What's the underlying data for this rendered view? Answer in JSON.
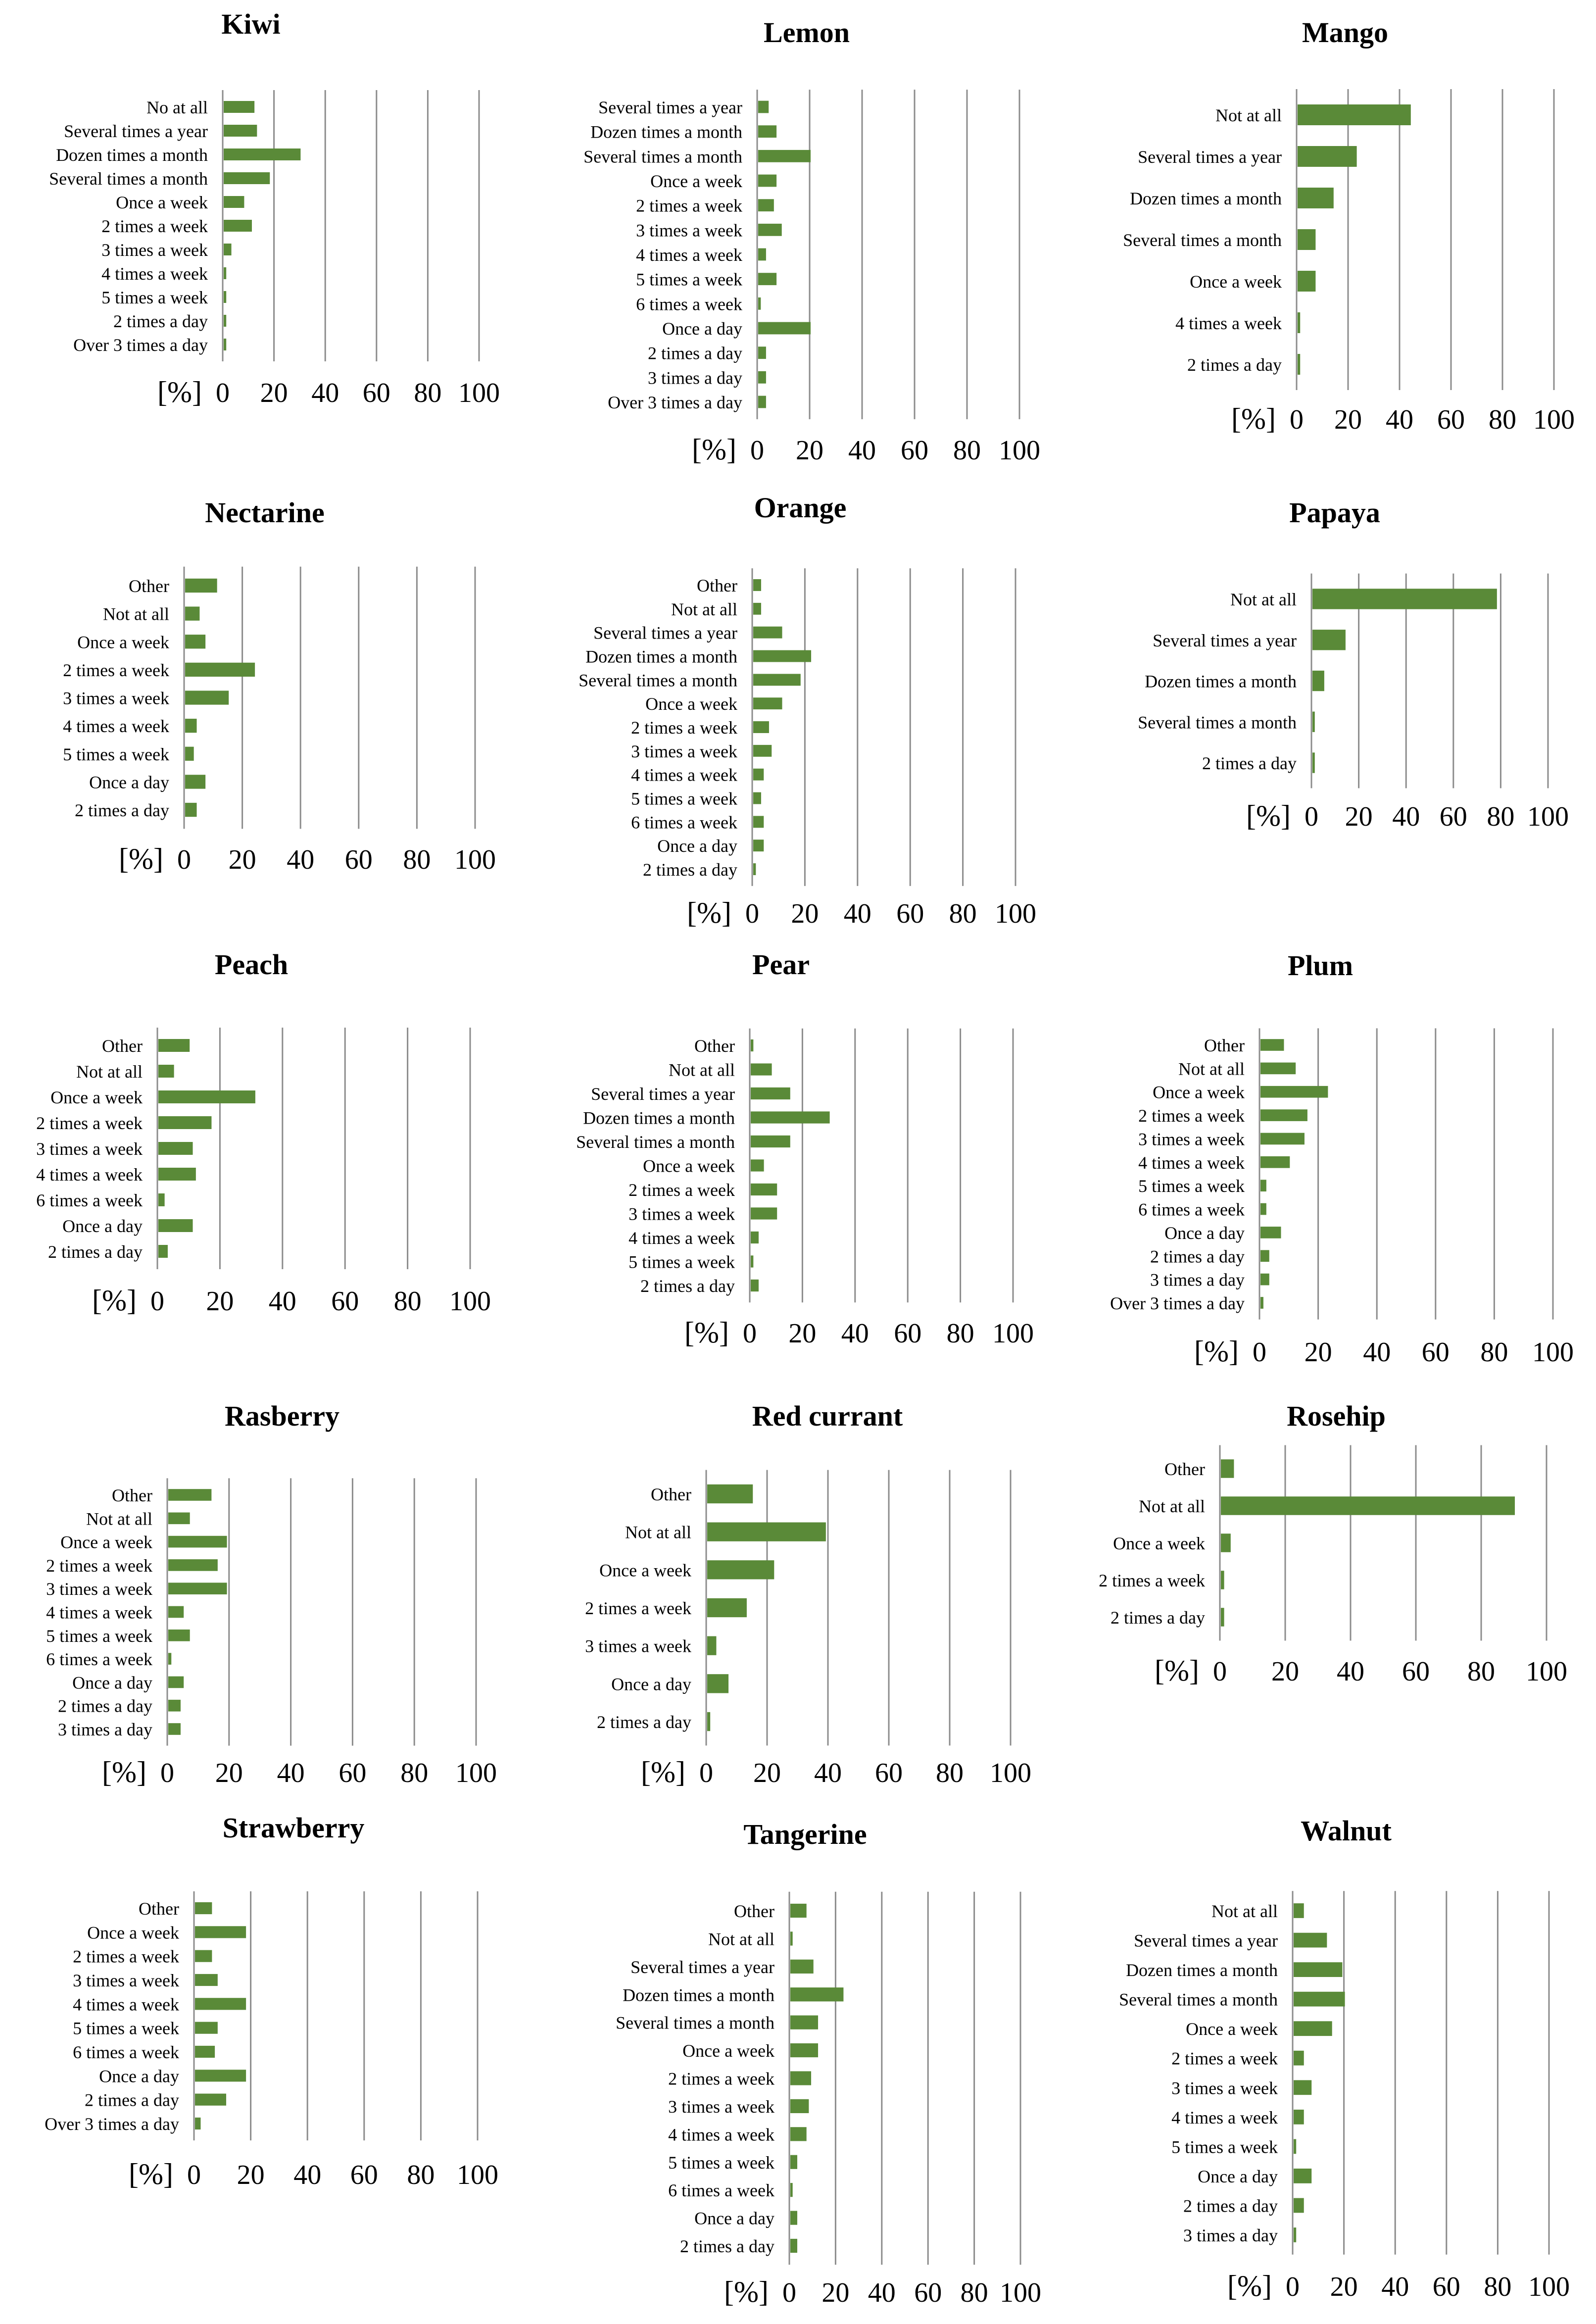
{
  "colors": {
    "bar": "#5a8a38",
    "grid": "#8c8c8c"
  },
  "chart_data": [
    {
      "type": "bar",
      "orientation": "horizontal",
      "title": "Kiwi",
      "xlabel": "[%]",
      "xlim": [
        0,
        100
      ],
      "ticks": [
        0,
        20,
        40,
        60,
        80,
        100
      ],
      "categories": [
        "No at all",
        "Several times a year",
        "Dozen times a month",
        "Several times a month",
        "Once a week",
        "2 times a week",
        "3 times a week",
        "4 times a week",
        "5 times a week",
        "2 times a day",
        "Over 3 times a day"
      ],
      "values": [
        12,
        13,
        30,
        18,
        8,
        11,
        3,
        1,
        1,
        1,
        1
      ]
    },
    {
      "type": "bar",
      "orientation": "horizontal",
      "title": "Lemon",
      "xlabel": "[%]",
      "xlim": [
        0,
        100
      ],
      "ticks": [
        0,
        20,
        40,
        60,
        80,
        100
      ],
      "categories": [
        "Several times a year",
        "Dozen times a month",
        "Several times a month",
        "Once a week",
        "2 times a week",
        "3 times a week",
        "4 times a week",
        "5 times a week",
        "6 times a week",
        "Once a day",
        "2 times a day",
        "3 times a day",
        "Over 3 times a day"
      ],
      "values": [
        4,
        7,
        20,
        7,
        6,
        9,
        3,
        7,
        1,
        20,
        3,
        3,
        3
      ]
    },
    {
      "type": "bar",
      "orientation": "horizontal",
      "title": "Mango",
      "xlabel": "[%]",
      "xlim": [
        0,
        100
      ],
      "ticks": [
        0,
        20,
        40,
        60,
        80,
        100
      ],
      "categories": [
        "Not at all",
        "Several times a year",
        "Dozen times a month",
        "Several times a month",
        "Once a week",
        "4 times a week",
        "2 times a day"
      ],
      "values": [
        44,
        23,
        14,
        7,
        7,
        1,
        1
      ]
    },
    {
      "type": "bar",
      "orientation": "horizontal",
      "title": "Nectarine",
      "xlabel": "[%]",
      "xlim": [
        0,
        100
      ],
      "ticks": [
        0,
        20,
        40,
        60,
        80,
        100
      ],
      "categories": [
        "Other",
        "Not at all",
        "Once a week",
        "2 times a week",
        "3 times a week",
        "4 times a week",
        "5 times a week",
        "Once a day",
        "2 times a day"
      ],
      "values": [
        11,
        5,
        7,
        24,
        15,
        4,
        3,
        7,
        4
      ]
    },
    {
      "type": "bar",
      "orientation": "horizontal",
      "title": "Orange",
      "xlabel": "[%]",
      "xlim": [
        0,
        100
      ],
      "ticks": [
        0,
        20,
        40,
        60,
        80,
        100
      ],
      "categories": [
        "Other",
        "Not at all",
        "Several times a year",
        "Dozen times a month",
        "Several times a month",
        "Once a week",
        "2 times a week",
        "3 times a week",
        "4 times a week",
        "5 times a week",
        "6 times a week",
        "Once a day",
        "2 times a day"
      ],
      "values": [
        3,
        3,
        11,
        22,
        18,
        11,
        6,
        7,
        4,
        3,
        4,
        4,
        1
      ]
    },
    {
      "type": "bar",
      "orientation": "horizontal",
      "title": "Papaya",
      "xlabel": "[%]",
      "xlim": [
        0,
        100
      ],
      "ticks": [
        0,
        20,
        40,
        60,
        80,
        100
      ],
      "categories": [
        "Not at all",
        "Several times a year",
        "Dozen times a month",
        "Several times a month",
        "2 times a day"
      ],
      "values": [
        78,
        14,
        5,
        1,
        1
      ]
    },
    {
      "type": "bar",
      "orientation": "horizontal",
      "title": "Peach",
      "xlabel": "[%]",
      "xlim": [
        0,
        100
      ],
      "ticks": [
        0,
        20,
        40,
        60,
        80,
        100
      ],
      "categories": [
        "Other",
        "Not at all",
        "Once a week",
        "2 times a week",
        "3 times a week",
        "4 times a week",
        "6 times a week",
        "Once a day",
        "2 times a day"
      ],
      "values": [
        10,
        5,
        31,
        17,
        11,
        12,
        2,
        11,
        3
      ]
    },
    {
      "type": "bar",
      "orientation": "horizontal",
      "title": "Pear",
      "xlabel": "[%]",
      "xlim": [
        0,
        100
      ],
      "ticks": [
        0,
        20,
        40,
        60,
        80,
        100
      ],
      "categories": [
        "Other",
        "Not at all",
        "Several times a year",
        "Dozen times a month",
        "Several times a month",
        "Once a week",
        "2 times a week",
        "3 times a week",
        "4 times a week",
        "5 times a week",
        "2 times a day"
      ],
      "values": [
        1,
        8,
        15,
        30,
        15,
        5,
        10,
        10,
        3,
        1,
        3
      ]
    },
    {
      "type": "bar",
      "orientation": "horizontal",
      "title": "Plum",
      "xlabel": "[%]",
      "xlim": [
        0,
        100
      ],
      "ticks": [
        0,
        20,
        40,
        60,
        80,
        100
      ],
      "categories": [
        "Other",
        "Not at all",
        "Once a week",
        "2 times a week",
        "3 times a week",
        "4 times a week",
        "5 times a week",
        "6 times a week",
        "Once a day",
        "2 times a day",
        "3 times a day",
        "Over 3 times a day"
      ],
      "values": [
        8,
        12,
        23,
        16,
        15,
        10,
        2,
        2,
        7,
        3,
        3,
        1
      ]
    },
    {
      "type": "bar",
      "orientation": "horizontal",
      "title": "Rasberry",
      "xlabel": "[%]",
      "xlim": [
        0,
        100
      ],
      "ticks": [
        0,
        20,
        40,
        60,
        80,
        100
      ],
      "categories": [
        "Other",
        "Not at all",
        "Once a week",
        "2 times a week",
        "3 times a week",
        "4 times a week",
        "5 times a week",
        "6 times a week",
        "Once a day",
        "2 times a day",
        "3 times a day"
      ],
      "values": [
        14,
        7,
        19,
        16,
        19,
        5,
        7,
        1,
        5,
        4,
        4
      ]
    },
    {
      "type": "bar",
      "orientation": "horizontal",
      "title": "Red currant",
      "xlabel": "[%]",
      "xlim": [
        0,
        100
      ],
      "ticks": [
        0,
        20,
        40,
        60,
        80,
        100
      ],
      "categories": [
        "Other",
        "Not at all",
        "Once a week",
        "2 times a week",
        "3 times a week",
        "Once a day",
        "2 times a day"
      ],
      "values": [
        15,
        39,
        22,
        13,
        3,
        7,
        1
      ]
    },
    {
      "type": "bar",
      "orientation": "horizontal",
      "title": "Rosehip",
      "xlabel": "[%]",
      "xlim": [
        0,
        100
      ],
      "ticks": [
        0,
        20,
        40,
        60,
        80,
        100
      ],
      "categories": [
        "Other",
        "Not at all",
        "Once a week",
        "2 times a week",
        "2 times a day"
      ],
      "values": [
        4,
        90,
        3,
        1,
        1
      ]
    },
    {
      "type": "bar",
      "orientation": "horizontal",
      "title": "Strawberry",
      "xlabel": "[%]",
      "xlim": [
        0,
        100
      ],
      "ticks": [
        0,
        20,
        40,
        60,
        80,
        100
      ],
      "categories": [
        "Other",
        "Once a week",
        "2 times a week",
        "3 times a week",
        "4 times a week",
        "5 times a week",
        "6 times a week",
        "Once a day",
        "2 times a day",
        "Over 3 times a day"
      ],
      "values": [
        6,
        18,
        6,
        8,
        18,
        8,
        7,
        18,
        11,
        2
      ]
    },
    {
      "type": "bar",
      "orientation": "horizontal",
      "title": "Tangerine",
      "xlabel": "[%]",
      "xlim": [
        0,
        100
      ],
      "ticks": [
        0,
        20,
        40,
        60,
        80,
        100
      ],
      "categories": [
        "Other",
        "Not at all",
        "Several times a year",
        "Dozen times a month",
        "Several times a month",
        "Once a week",
        "2 times a week",
        "3 times a week",
        "4 times a week",
        "5 times a week",
        "6 times a week",
        "Once a day",
        "2 times a day"
      ],
      "values": [
        7,
        1,
        10,
        23,
        12,
        12,
        9,
        8,
        7,
        3,
        1,
        3,
        3
      ]
    },
    {
      "type": "bar",
      "orientation": "horizontal",
      "title": "Walnut",
      "xlabel": "[%]",
      "xlim": [
        0,
        100
      ],
      "ticks": [
        0,
        20,
        40,
        60,
        80,
        100
      ],
      "categories": [
        "Not at all",
        "Several times a year",
        "Dozen times a month",
        "Several times a month",
        "Once a week",
        "2 times a week",
        "3 times a week",
        "4 times a week",
        "5 times a week",
        "Once a day",
        "2 times a day",
        "3 times a day"
      ],
      "values": [
        4,
        13,
        19,
        20,
        15,
        4,
        7,
        4,
        1,
        7,
        4,
        1
      ]
    }
  ]
}
